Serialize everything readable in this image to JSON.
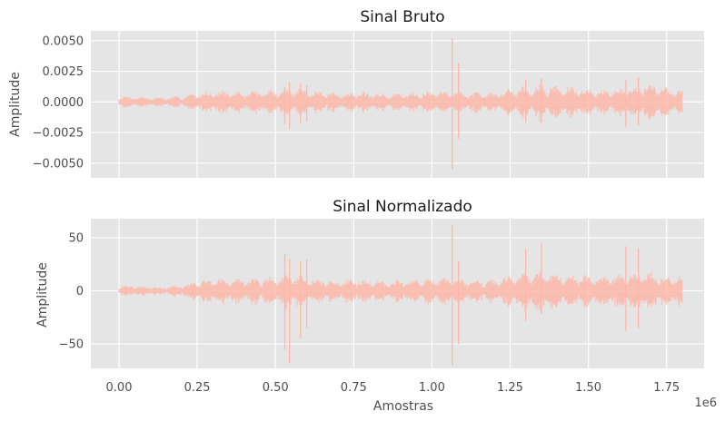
{
  "colors": {
    "panel_bg": "#e5e5e5",
    "grid": "#ffffff",
    "signal": "#fdb7a9",
    "text": "#4d4d4d",
    "title": "#1a1a1a"
  },
  "x_axis": {
    "label": "Amostras",
    "offset_text": "1e6",
    "ticks": [
      0.0,
      0.25,
      0.5,
      0.75,
      1.0,
      1.25,
      1.5,
      1.75
    ],
    "tick_labels": [
      "0.00",
      "0.25",
      "0.50",
      "0.75",
      "1.00",
      "1.25",
      "1.50",
      "1.75"
    ],
    "lim": [
      -0.09,
      1.87
    ],
    "num_samples": 1800000
  },
  "chart_data": [
    {
      "type": "line",
      "title": "Sinal Bruto",
      "xlabel": "",
      "ylabel": "Amplitude",
      "ylim": [
        -0.0062,
        0.0058
      ],
      "yticks": [
        -0.005,
        -0.0025,
        0.0,
        0.0025,
        0.005
      ],
      "ytick_labels": [
        "−0.0050",
        "−0.0025",
        "0.0000",
        "0.0025",
        "0.0050"
      ],
      "grid": true,
      "series": [
        {
          "color": "#fdb7a9",
          "envelope_x": [
            0.0,
            0.05,
            0.1,
            0.15,
            0.2,
            0.25,
            0.3,
            0.35,
            0.4,
            0.45,
            0.5,
            0.55,
            0.6,
            0.65,
            0.7,
            0.75,
            0.8,
            0.85,
            0.9,
            0.95,
            1.0,
            1.05,
            1.1,
            1.15,
            1.2,
            1.25,
            1.3,
            1.35,
            1.4,
            1.45,
            1.5,
            1.55,
            1.6,
            1.65,
            1.7,
            1.75,
            1.8
          ],
          "envelope_y": [
            0.0005,
            0.0005,
            0.0004,
            0.0004,
            0.0005,
            0.0008,
            0.001,
            0.0009,
            0.0009,
            0.001,
            0.0011,
            0.0012,
            0.0011,
            0.0009,
            0.0007,
            0.0009,
            0.0008,
            0.0007,
            0.0008,
            0.0009,
            0.0009,
            0.001,
            0.0009,
            0.0008,
            0.0008,
            0.0012,
            0.0014,
            0.0015,
            0.0014,
            0.0013,
            0.0012,
            0.0011,
            0.0012,
            0.0014,
            0.0016,
            0.0012,
            0.0012
          ],
          "spikes": [
            {
              "x": 0.53,
              "min": -0.0018,
              "max": 0.0012
            },
            {
              "x": 0.545,
              "min": -0.0022,
              "max": 0.0016
            },
            {
              "x": 0.58,
              "min": -0.0017,
              "max": 0.0015
            },
            {
              "x": 0.6,
              "min": -0.0016,
              "max": 0.0014
            },
            {
              "x": 1.065,
              "min": -0.0055,
              "max": 0.0052
            },
            {
              "x": 1.085,
              "min": -0.003,
              "max": 0.0032
            },
            {
              "x": 1.3,
              "min": -0.0017,
              "max": 0.0018
            },
            {
              "x": 1.35,
              "min": -0.0017,
              "max": 0.0019
            },
            {
              "x": 1.62,
              "min": -0.002,
              "max": 0.0018
            },
            {
              "x": 1.66,
              "min": -0.0019,
              "max": 0.002
            }
          ]
        }
      ]
    },
    {
      "type": "line",
      "title": "Sinal Normalizado",
      "xlabel": "Amostras",
      "ylabel": "Amplitude",
      "ylim": [
        -73,
        68
      ],
      "yticks": [
        -50,
        0,
        50
      ],
      "ytick_labels": [
        "−50",
        "0",
        "50"
      ],
      "grid": true,
      "series": [
        {
          "color": "#fdb7a9",
          "envelope_x": [
            0.0,
            0.05,
            0.1,
            0.15,
            0.2,
            0.25,
            0.3,
            0.35,
            0.4,
            0.45,
            0.5,
            0.55,
            0.6,
            0.65,
            0.7,
            0.75,
            0.8,
            0.85,
            0.9,
            0.95,
            1.0,
            1.05,
            1.1,
            1.15,
            1.2,
            1.25,
            1.3,
            1.35,
            1.4,
            1.45,
            1.5,
            1.55,
            1.6,
            1.65,
            1.7,
            1.75,
            1.8
          ],
          "envelope_y": [
            5,
            5,
            4,
            4,
            6,
            10,
            12,
            12,
            12,
            13,
            14,
            16,
            14,
            12,
            10,
            12,
            11,
            10,
            11,
            12,
            12,
            13,
            12,
            11,
            11,
            15,
            18,
            19,
            18,
            17,
            16,
            15,
            16,
            18,
            20,
            16,
            16
          ],
          "spikes": [
            {
              "x": 0.53,
              "min": -55,
              "max": 35
            },
            {
              "x": 0.545,
              "min": -68,
              "max": 30
            },
            {
              "x": 0.58,
              "min": -45,
              "max": 28
            },
            {
              "x": 0.6,
              "min": -35,
              "max": 30
            },
            {
              "x": 1.065,
              "min": -70,
              "max": 62
            },
            {
              "x": 1.085,
              "min": -50,
              "max": 28
            },
            {
              "x": 1.3,
              "min": -28,
              "max": 40
            },
            {
              "x": 1.35,
              "min": -22,
              "max": 45
            },
            {
              "x": 1.62,
              "min": -38,
              "max": 42
            },
            {
              "x": 1.66,
              "min": -35,
              "max": 40
            }
          ]
        }
      ]
    }
  ]
}
